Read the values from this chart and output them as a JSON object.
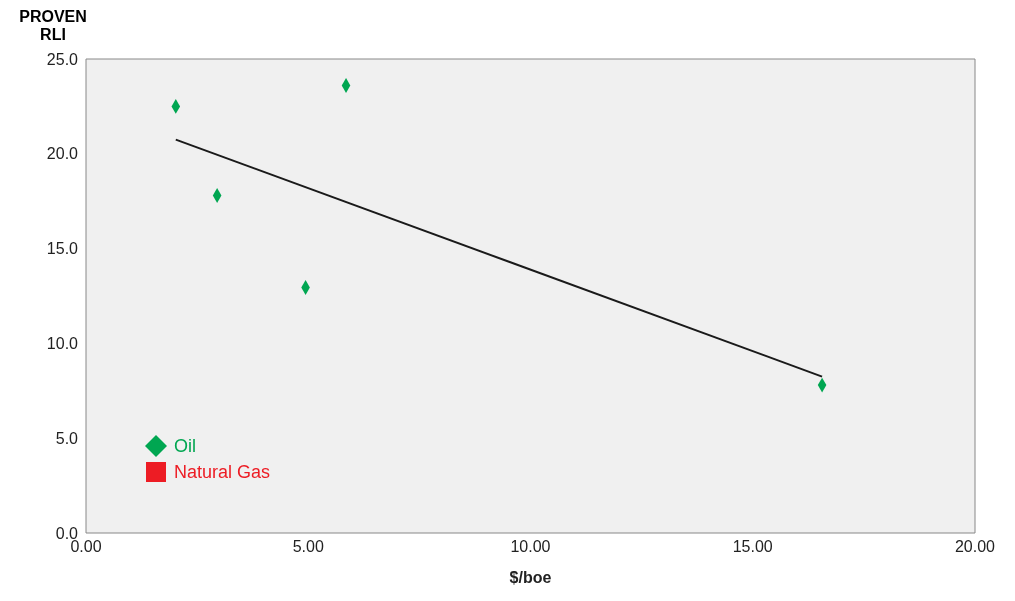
{
  "chart_data": {
    "type": "scatter",
    "xlabel": "$/boe",
    "ylabel": "PROVEN RLI",
    "xlim": [
      0,
      20
    ],
    "ylim": [
      0,
      25
    ],
    "xticks": [
      {
        "value": 0,
        "label": "0.00"
      },
      {
        "value": 5,
        "label": "5.00"
      },
      {
        "value": 10,
        "label": "10.00"
      },
      {
        "value": 15,
        "label": "15.00"
      },
      {
        "value": 20,
        "label": "20.00"
      }
    ],
    "yticks": [
      {
        "value": 0,
        "label": "0.0"
      },
      {
        "value": 5,
        "label": "5.0"
      },
      {
        "value": 10,
        "label": "10.0"
      },
      {
        "value": 15,
        "label": "15.0"
      },
      {
        "value": 20,
        "label": "20.0"
      },
      {
        "value": 25,
        "label": "25.0"
      }
    ],
    "legend": "bottom left",
    "series": [
      {
        "name": "Oil",
        "marker": "diamond",
        "color": "#00a651",
        "x": [
          2.02,
          5.85,
          2.95,
          4.94,
          16.56
        ],
        "values": [
          22.5,
          23.6,
          17.8,
          12.95,
          7.8
        ]
      },
      {
        "name": "Natural Gas",
        "type": "scatter",
        "marker": "square",
        "color": "#ed1c24"
      },
      {
        "type": "line",
        "marker": "none",
        "color": "#1a1a1a",
        "x": [
          2.02,
          16.56
        ],
        "values": [
          20.75,
          8.25
        ]
      }
    ]
  }
}
